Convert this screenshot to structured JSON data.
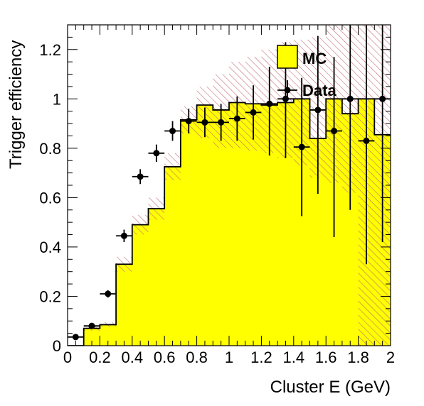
{
  "chart_data": {
    "type": "bar",
    "xlabel": "Cluster E (GeV)",
    "ylabel": "Trigger efficiency",
    "xlim": [
      0,
      2
    ],
    "ylim": [
      0,
      1.3
    ],
    "x_ticks": [
      0,
      0.2,
      0.4,
      0.6,
      0.8,
      1,
      1.2,
      1.4,
      1.6,
      1.8,
      2
    ],
    "x_tick_labels": [
      "0",
      "0.2",
      "0.4",
      "0.6",
      "0.8",
      "1",
      "1.2",
      "1.4",
      "1.6",
      "1.8",
      "2"
    ],
    "y_ticks": [
      0,
      0.2,
      0.4,
      0.6,
      0.8,
      1,
      1.2
    ],
    "y_tick_labels": [
      "0",
      "0.2",
      "0.4",
      "0.6",
      "0.8",
      "1",
      "1.2"
    ],
    "bin_edges": [
      0,
      0.1,
      0.2,
      0.3,
      0.4,
      0.5,
      0.6,
      0.7,
      0.8,
      0.9,
      1.0,
      1.1,
      1.2,
      1.3,
      1.4,
      1.5,
      1.6,
      1.7,
      1.8,
      1.9,
      2.0
    ],
    "legend_position": "top-right",
    "series": [
      {
        "name": "MC",
        "kind": "histogram",
        "fill_color": "#ffff00",
        "values": [
          0.0,
          0.07,
          0.085,
          0.33,
          0.49,
          0.555,
          0.725,
          0.915,
          0.975,
          0.955,
          0.985,
          0.98,
          0.975,
          0.985,
          1.0,
          0.84,
          1.0,
          0.94,
          1.0,
          0.855
        ],
        "uncertainty_band": {
          "fill": "hatched",
          "color": "#c06070",
          "lower": [
            0.0,
            0.06,
            0.075,
            0.3,
            0.45,
            0.51,
            0.67,
            0.86,
            0.84,
            0.8,
            0.8,
            0.79,
            0.78,
            0.76,
            0.73,
            0.68,
            0.66,
            0.62,
            0.0,
            0.0
          ],
          "upper": [
            0.0,
            0.08,
            0.095,
            0.36,
            0.53,
            0.6,
            0.78,
            0.97,
            1.05,
            1.1,
            1.15,
            1.17,
            1.2,
            1.23,
            1.24,
            1.25,
            1.3,
            1.3,
            1.3,
            1.3
          ]
        }
      },
      {
        "name": "Data",
        "kind": "points",
        "marker_color": "#000000",
        "x": [
          0.05,
          0.15,
          0.25,
          0.35,
          0.45,
          0.55,
          0.65,
          0.75,
          0.85,
          0.95,
          1.05,
          1.15,
          1.25,
          1.35,
          1.45,
          1.55,
          1.65,
          1.75,
          1.85,
          1.95
        ],
        "y": [
          0.035,
          0.08,
          0.21,
          0.445,
          0.685,
          0.78,
          0.87,
          0.91,
          0.905,
          0.905,
          0.92,
          0.945,
          0.98,
          1.0,
          0.805,
          0.955,
          0.87,
          1.0,
          0.83,
          1.0
        ],
        "y_err_low": [
          0.005,
          0.01,
          0.015,
          0.025,
          0.03,
          0.035,
          0.04,
          0.05,
          0.06,
          0.075,
          0.09,
          0.11,
          0.21,
          0.24,
          0.28,
          0.34,
          0.43,
          0.45,
          0.5,
          0.58
        ],
        "y_err_high": [
          0.005,
          0.01,
          0.015,
          0.025,
          0.03,
          0.035,
          0.04,
          0.05,
          0.06,
          0.075,
          0.09,
          0.11,
          0.15,
          0.23,
          0.28,
          0.3,
          0.3,
          0.3,
          0.47,
          0.3
        ],
        "x_err": 0.05
      }
    ]
  }
}
